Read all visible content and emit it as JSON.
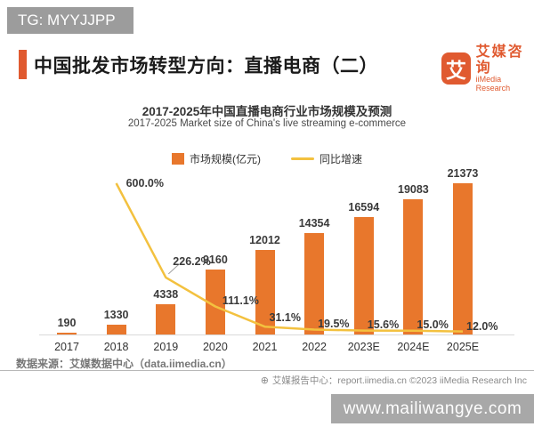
{
  "badge": {
    "text": "TG: MYYJJPP"
  },
  "header": {
    "title": "中国批发市场转型方向：直播电商（二）",
    "logo": {
      "mark": "艾",
      "name_zh": "艾媒咨询",
      "name_en": "iiMedia Research"
    }
  },
  "chart_data": {
    "type": "bar",
    "title": "2017-2025年中国直播电商行业市场规模及预测",
    "subtitle": "2017-2025 Market size of China's live streaming e-commerce",
    "categories": [
      "2017",
      "2018",
      "2019",
      "2020",
      "2021",
      "2022",
      "2023E",
      "2024E",
      "2025E"
    ],
    "series": [
      {
        "name": "市场规模(亿元)",
        "type": "bar",
        "color": "#e8772c",
        "values": [
          190,
          1330,
          4338,
          9160,
          12012,
          14354,
          16594,
          19083,
          21373
        ]
      },
      {
        "name": "同比增速",
        "type": "line",
        "color": "#f3c13f",
        "values": [
          null,
          600.0,
          226.2,
          111.1,
          31.1,
          19.5,
          15.6,
          15.0,
          12.0
        ],
        "labels": [
          null,
          "600.0%",
          "226.2%",
          "111.1%",
          "31.1%",
          "19.5%",
          "15.6%",
          "15.0%",
          "12.0%"
        ]
      }
    ],
    "ylim": [
      0,
      21373
    ],
    "y2lim": [
      0,
      600
    ],
    "grid": false,
    "legend_position": "top"
  },
  "source": {
    "text": "数据来源：艾媒数据中心（data.iimedia.cn）"
  },
  "footer": {
    "icon": "⊕",
    "text": "艾媒报告中心：report.iimedia.cn  ©2023  iiMedia Research Inc"
  },
  "watermark": {
    "text": "www.mailiwangye.com"
  },
  "colors": {
    "bar": "#e8772c",
    "line": "#f3c13f",
    "accent": "#e05a30"
  }
}
